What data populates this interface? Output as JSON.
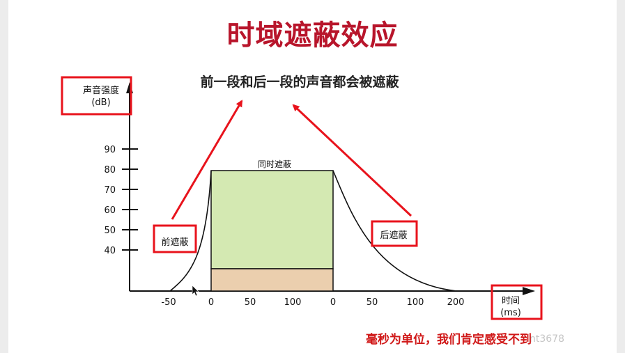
{
  "title": "时域遮蔽效应",
  "subtitle": "前一段和后一段的声音都会被遮蔽",
  "y_axis": {
    "label_line1": "声音强度",
    "label_line2": "(dB)",
    "ticks": [
      "90",
      "80",
      "70",
      "60",
      "50",
      "40"
    ]
  },
  "x_axis": {
    "label_line1": "时间",
    "label_line2": "(ms)",
    "ticks": [
      "-50",
      "0",
      "50",
      "100",
      "0",
      "50",
      "100",
      "200"
    ]
  },
  "regions": {
    "simultaneous": "同时遮蔽",
    "pre": "前遮蔽",
    "post": "后遮蔽"
  },
  "colors": {
    "title": "#b8152b",
    "highlight_box": "#e8131c",
    "arrow": "#e8131c",
    "simultaneous_fill": "#d4e9b2",
    "base_fill": "#ebcfae"
  },
  "footer": "毫秒为单位，我们肯定感受不到",
  "watermark": "nt3678"
}
